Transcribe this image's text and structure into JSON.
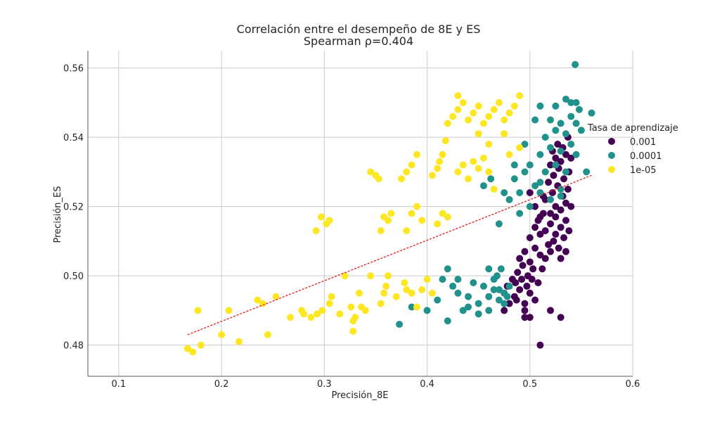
{
  "chart_data": {
    "type": "scatter",
    "title": "Correlación entre el desempeño de 8E y ES",
    "subtitle": "Spearman ρ=0.404",
    "xlabel": "Precisión_8E",
    "ylabel": "Precisión_ES",
    "xlim": [
      0.07,
      0.6
    ],
    "ylim": [
      0.471,
      0.565
    ],
    "xticks": [
      0.1,
      0.2,
      0.3,
      0.4,
      0.5,
      0.6
    ],
    "xtick_labels": [
      "0.1",
      "0.2",
      "0.3",
      "0.4",
      "0.5",
      "0.6"
    ],
    "yticks": [
      0.48,
      0.5,
      0.52,
      0.54,
      0.56
    ],
    "ytick_labels": [
      "0.48",
      "0.50",
      "0.52",
      "0.54",
      "0.56"
    ],
    "grid": true,
    "legend": {
      "title": "Tasa de aprendizaje",
      "placement": "right"
    },
    "series": [
      {
        "name": "0.001",
        "color": "#440154",
        "points": [
          [
            0.51,
            0.48
          ],
          [
            0.53,
            0.488
          ],
          [
            0.475,
            0.49
          ],
          [
            0.495,
            0.488
          ],
          [
            0.52,
            0.49
          ],
          [
            0.48,
            0.492
          ],
          [
            0.485,
            0.494
          ],
          [
            0.49,
            0.496
          ],
          [
            0.495,
            0.492
          ],
          [
            0.5,
            0.495
          ],
          [
            0.505,
            0.493
          ],
          [
            0.478,
            0.497
          ],
          [
            0.483,
            0.499
          ],
          [
            0.488,
            0.501
          ],
          [
            0.493,
            0.503
          ],
          [
            0.498,
            0.5
          ],
          [
            0.503,
            0.502
          ],
          [
            0.508,
            0.498
          ],
          [
            0.49,
            0.505
          ],
          [
            0.495,
            0.507
          ],
          [
            0.5,
            0.504
          ],
          [
            0.505,
            0.508
          ],
          [
            0.51,
            0.506
          ],
          [
            0.515,
            0.505
          ],
          [
            0.486,
            0.498
          ],
          [
            0.492,
            0.499
          ],
          [
            0.497,
            0.497
          ],
          [
            0.502,
            0.499
          ],
          [
            0.512,
            0.502
          ],
          [
            0.475,
            0.495
          ],
          [
            0.5,
            0.511
          ],
          [
            0.505,
            0.514
          ],
          [
            0.51,
            0.512
          ],
          [
            0.515,
            0.513
          ],
          [
            0.52,
            0.515
          ],
          [
            0.525,
            0.512
          ],
          [
            0.53,
            0.514
          ],
          [
            0.535,
            0.516
          ],
          [
            0.518,
            0.509
          ],
          [
            0.523,
            0.51
          ],
          [
            0.528,
            0.508
          ],
          [
            0.533,
            0.511
          ],
          [
            0.538,
            0.513
          ],
          [
            0.508,
            0.516
          ],
          [
            0.513,
            0.518
          ],
          [
            0.52,
            0.518
          ],
          [
            0.525,
            0.52
          ],
          [
            0.53,
            0.519
          ],
          [
            0.535,
            0.521
          ],
          [
            0.54,
            0.52
          ],
          [
            0.515,
            0.522
          ],
          [
            0.522,
            0.524
          ],
          [
            0.527,
            0.526
          ],
          [
            0.532,
            0.523
          ],
          [
            0.537,
            0.525
          ],
          [
            0.518,
            0.527
          ],
          [
            0.523,
            0.529
          ],
          [
            0.528,
            0.531
          ],
          [
            0.533,
            0.528
          ],
          [
            0.538,
            0.53
          ],
          [
            0.52,
            0.532
          ],
          [
            0.525,
            0.534
          ],
          [
            0.53,
            0.533
          ],
          [
            0.535,
            0.535
          ],
          [
            0.54,
            0.534
          ],
          [
            0.522,
            0.536
          ],
          [
            0.527,
            0.538
          ],
          [
            0.532,
            0.537
          ],
          [
            0.537,
            0.54
          ],
          [
            0.5,
            0.524
          ],
          [
            0.505,
            0.52
          ],
          [
            0.51,
            0.517
          ],
          [
            0.525,
            0.517
          ],
          [
            0.513,
            0.523
          ],
          [
            0.53,
            0.505
          ],
          [
            0.535,
            0.507
          ],
          [
            0.52,
            0.507
          ],
          [
            0.495,
            0.49
          ],
          [
            0.5,
            0.488
          ],
          [
            0.487,
            0.493
          ]
        ]
      },
      {
        "name": "0.0001",
        "color": "#21918c",
        "points": [
          [
            0.373,
            0.486
          ],
          [
            0.385,
            0.491
          ],
          [
            0.4,
            0.49
          ],
          [
            0.42,
            0.487
          ],
          [
            0.41,
            0.493
          ],
          [
            0.43,
            0.495
          ],
          [
            0.44,
            0.494
          ],
          [
            0.45,
            0.492
          ],
          [
            0.46,
            0.494
          ],
          [
            0.435,
            0.49
          ],
          [
            0.445,
            0.498
          ],
          [
            0.455,
            0.497
          ],
          [
            0.465,
            0.499
          ],
          [
            0.47,
            0.496
          ],
          [
            0.475,
            0.495
          ],
          [
            0.48,
            0.497
          ],
          [
            0.425,
            0.497
          ],
          [
            0.415,
            0.499
          ],
          [
            0.42,
            0.502
          ],
          [
            0.46,
            0.502
          ],
          [
            0.468,
            0.5
          ],
          [
            0.472,
            0.502
          ],
          [
            0.478,
            0.494
          ],
          [
            0.44,
            0.491
          ],
          [
            0.43,
            0.499
          ],
          [
            0.45,
            0.489
          ],
          [
            0.46,
            0.49
          ],
          [
            0.465,
            0.496
          ],
          [
            0.47,
            0.493
          ],
          [
            0.475,
            0.492
          ],
          [
            0.47,
            0.515
          ],
          [
            0.48,
            0.522
          ],
          [
            0.49,
            0.524
          ],
          [
            0.5,
            0.52
          ],
          [
            0.51,
            0.524
          ],
          [
            0.52,
            0.522
          ],
          [
            0.53,
            0.525
          ],
          [
            0.485,
            0.528
          ],
          [
            0.495,
            0.53
          ],
          [
            0.505,
            0.526
          ],
          [
            0.515,
            0.53
          ],
          [
            0.525,
            0.532
          ],
          [
            0.535,
            0.53
          ],
          [
            0.5,
            0.532
          ],
          [
            0.51,
            0.535
          ],
          [
            0.52,
            0.537
          ],
          [
            0.53,
            0.536
          ],
          [
            0.54,
            0.538
          ],
          [
            0.545,
            0.535
          ],
          [
            0.515,
            0.54
          ],
          [
            0.525,
            0.542
          ],
          [
            0.535,
            0.541
          ],
          [
            0.545,
            0.544
          ],
          [
            0.55,
            0.542
          ],
          [
            0.52,
            0.545
          ],
          [
            0.53,
            0.544
          ],
          [
            0.54,
            0.546
          ],
          [
            0.548,
            0.548
          ],
          [
            0.56,
            0.547
          ],
          [
            0.525,
            0.549
          ],
          [
            0.535,
            0.551
          ],
          [
            0.545,
            0.55
          ],
          [
            0.555,
            0.53
          ],
          [
            0.505,
            0.545
          ],
          [
            0.495,
            0.538
          ],
          [
            0.485,
            0.532
          ],
          [
            0.475,
            0.524
          ],
          [
            0.49,
            0.518
          ],
          [
            0.51,
            0.527
          ],
          [
            0.53,
            0.523
          ],
          [
            0.544,
            0.561
          ],
          [
            0.54,
            0.55
          ],
          [
            0.455,
            0.526
          ],
          [
            0.462,
            0.528
          ],
          [
            0.51,
            0.549
          ]
        ]
      },
      {
        "name": "1e-05",
        "color": "#fde725",
        "points": [
          [
            0.167,
            0.479
          ],
          [
            0.172,
            0.478
          ],
          [
            0.18,
            0.48
          ],
          [
            0.177,
            0.49
          ],
          [
            0.2,
            0.483
          ],
          [
            0.207,
            0.49
          ],
          [
            0.217,
            0.481
          ],
          [
            0.235,
            0.493
          ],
          [
            0.24,
            0.492
          ],
          [
            0.245,
            0.483
          ],
          [
            0.253,
            0.494
          ],
          [
            0.267,
            0.488
          ],
          [
            0.278,
            0.49
          ],
          [
            0.28,
            0.489
          ],
          [
            0.287,
            0.488
          ],
          [
            0.293,
            0.489
          ],
          [
            0.298,
            0.49
          ],
          [
            0.305,
            0.492
          ],
          [
            0.307,
            0.494
          ],
          [
            0.315,
            0.489
          ],
          [
            0.32,
            0.5
          ],
          [
            0.326,
            0.491
          ],
          [
            0.328,
            0.487
          ],
          [
            0.33,
            0.488
          ],
          [
            0.334,
            0.495
          ],
          [
            0.336,
            0.491
          ],
          [
            0.34,
            0.49
          ],
          [
            0.345,
            0.5
          ],
          [
            0.355,
            0.492
          ],
          [
            0.358,
            0.495
          ],
          [
            0.36,
            0.497
          ],
          [
            0.362,
            0.5
          ],
          [
            0.37,
            0.494
          ],
          [
            0.378,
            0.498
          ],
          [
            0.38,
            0.496
          ],
          [
            0.385,
            0.495
          ],
          [
            0.39,
            0.491
          ],
          [
            0.395,
            0.496
          ],
          [
            0.4,
            0.499
          ],
          [
            0.405,
            0.495
          ],
          [
            0.328,
            0.484
          ],
          [
            0.292,
            0.513
          ],
          [
            0.297,
            0.517
          ],
          [
            0.302,
            0.515
          ],
          [
            0.305,
            0.516
          ],
          [
            0.355,
            0.513
          ],
          [
            0.358,
            0.517
          ],
          [
            0.362,
            0.516
          ],
          [
            0.365,
            0.518
          ],
          [
            0.38,
            0.513
          ],
          [
            0.385,
            0.518
          ],
          [
            0.39,
            0.52
          ],
          [
            0.395,
            0.516
          ],
          [
            0.41,
            0.515
          ],
          [
            0.415,
            0.518
          ],
          [
            0.42,
            0.517
          ],
          [
            0.345,
            0.53
          ],
          [
            0.35,
            0.529
          ],
          [
            0.353,
            0.528
          ],
          [
            0.375,
            0.528
          ],
          [
            0.38,
            0.53
          ],
          [
            0.385,
            0.532
          ],
          [
            0.39,
            0.535
          ],
          [
            0.405,
            0.529
          ],
          [
            0.41,
            0.531
          ],
          [
            0.412,
            0.533
          ],
          [
            0.415,
            0.535
          ],
          [
            0.43,
            0.53
          ],
          [
            0.435,
            0.532
          ],
          [
            0.44,
            0.528
          ],
          [
            0.445,
            0.533
          ],
          [
            0.45,
            0.531
          ],
          [
            0.455,
            0.534
          ],
          [
            0.46,
            0.53
          ],
          [
            0.42,
            0.544
          ],
          [
            0.425,
            0.546
          ],
          [
            0.43,
            0.548
          ],
          [
            0.435,
            0.55
          ],
          [
            0.44,
            0.545
          ],
          [
            0.445,
            0.547
          ],
          [
            0.45,
            0.549
          ],
          [
            0.455,
            0.544
          ],
          [
            0.46,
            0.546
          ],
          [
            0.465,
            0.548
          ],
          [
            0.47,
            0.55
          ],
          [
            0.475,
            0.545
          ],
          [
            0.48,
            0.547
          ],
          [
            0.485,
            0.549
          ],
          [
            0.49,
            0.552
          ],
          [
            0.43,
            0.552
          ],
          [
            0.45,
            0.541
          ],
          [
            0.46,
            0.538
          ],
          [
            0.475,
            0.541
          ],
          [
            0.48,
            0.535
          ],
          [
            0.49,
            0.537
          ],
          [
            0.418,
            0.539
          ],
          [
            0.465,
            0.525
          ]
        ]
      }
    ],
    "trendline": {
      "color": "#e41a1c",
      "style": "dashed",
      "x": [
        0.167,
        0.56
      ],
      "y": [
        0.483,
        0.529
      ]
    }
  }
}
